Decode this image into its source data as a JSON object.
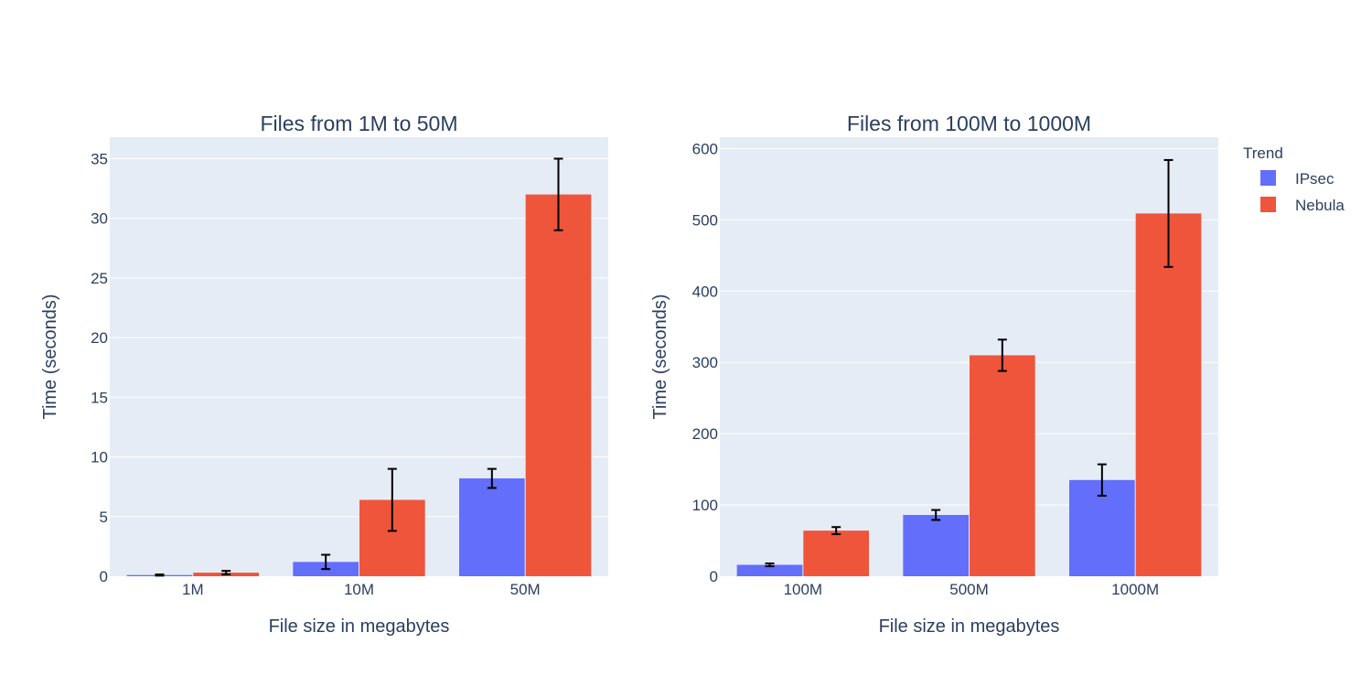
{
  "chart_data": [
    {
      "type": "bar",
      "title": "Files from 1M to 50M",
      "xlabel": "File size in megabytes",
      "ylabel": "Time (seconds)",
      "categories": [
        "1M",
        "10M",
        "50M"
      ],
      "ylim": [
        0,
        36.8
      ],
      "yticks": [
        0,
        5,
        10,
        15,
        20,
        25,
        30,
        35
      ],
      "series": [
        {
          "name": "IPsec",
          "color": "#636efa",
          "values": [
            0.1,
            1.2,
            8.2
          ],
          "errors": [
            0.05,
            0.6,
            0.8
          ]
        },
        {
          "name": "Nebula",
          "color": "#ef553b",
          "values": [
            0.3,
            6.4,
            32.0
          ],
          "errors": [
            0.15,
            2.6,
            3.0
          ]
        }
      ]
    },
    {
      "type": "bar",
      "title": "Files from 100M to 1000M",
      "xlabel": "File size in megabytes",
      "ylabel": "Time (seconds)",
      "categories": [
        "100M",
        "500M",
        "1000M"
      ],
      "ylim": [
        0,
        616
      ],
      "yticks": [
        0,
        100,
        200,
        300,
        400,
        500,
        600
      ],
      "series": [
        {
          "name": "IPsec",
          "color": "#636efa",
          "values": [
            16,
            86,
            135
          ],
          "errors": [
            2,
            7,
            22
          ]
        },
        {
          "name": "Nebula",
          "color": "#ef553b",
          "values": [
            64,
            310,
            509
          ],
          "errors": [
            5,
            22,
            75
          ]
        }
      ]
    }
  ],
  "legend": {
    "title": "Trend",
    "position": "top-right",
    "items": [
      {
        "name": "IPsec",
        "color": "#636efa"
      },
      {
        "name": "Nebula",
        "color": "#ef553b"
      }
    ]
  },
  "style": {
    "plot_bg": "#e5ecf6",
    "grid": "#ffffff",
    "text": "#2a3f5f",
    "error_bar": "#000000"
  }
}
